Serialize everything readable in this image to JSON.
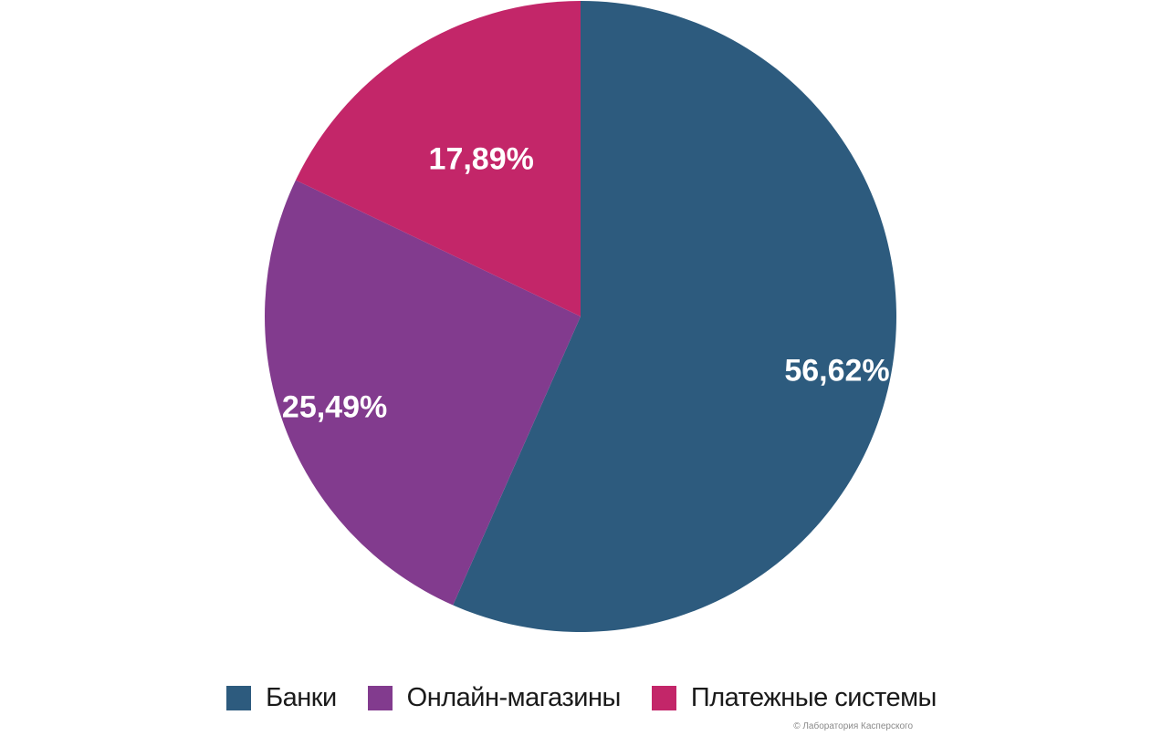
{
  "chart_data": {
    "type": "pie",
    "slices": [
      {
        "name": "Банки",
        "value": 56.62,
        "label": "56,62%",
        "color": "#2d5b7e"
      },
      {
        "name": "Онлайн-магазины",
        "value": 25.49,
        "label": "25,49%",
        "color": "#823b8e"
      },
      {
        "name": "Платежные системы",
        "value": 17.89,
        "label": "17,89%",
        "color": "#c32669"
      }
    ],
    "start_angle": "12 o'clock",
    "direction": "clockwise",
    "legend_position": "bottom"
  },
  "legend": {
    "items": [
      {
        "label": "Банки",
        "color": "#2d5b7e"
      },
      {
        "label": "Онлайн-магазины",
        "color": "#823b8e"
      },
      {
        "label": "Платежные системы",
        "color": "#c32669"
      }
    ]
  },
  "credit": "© Лаборатория Касперского"
}
